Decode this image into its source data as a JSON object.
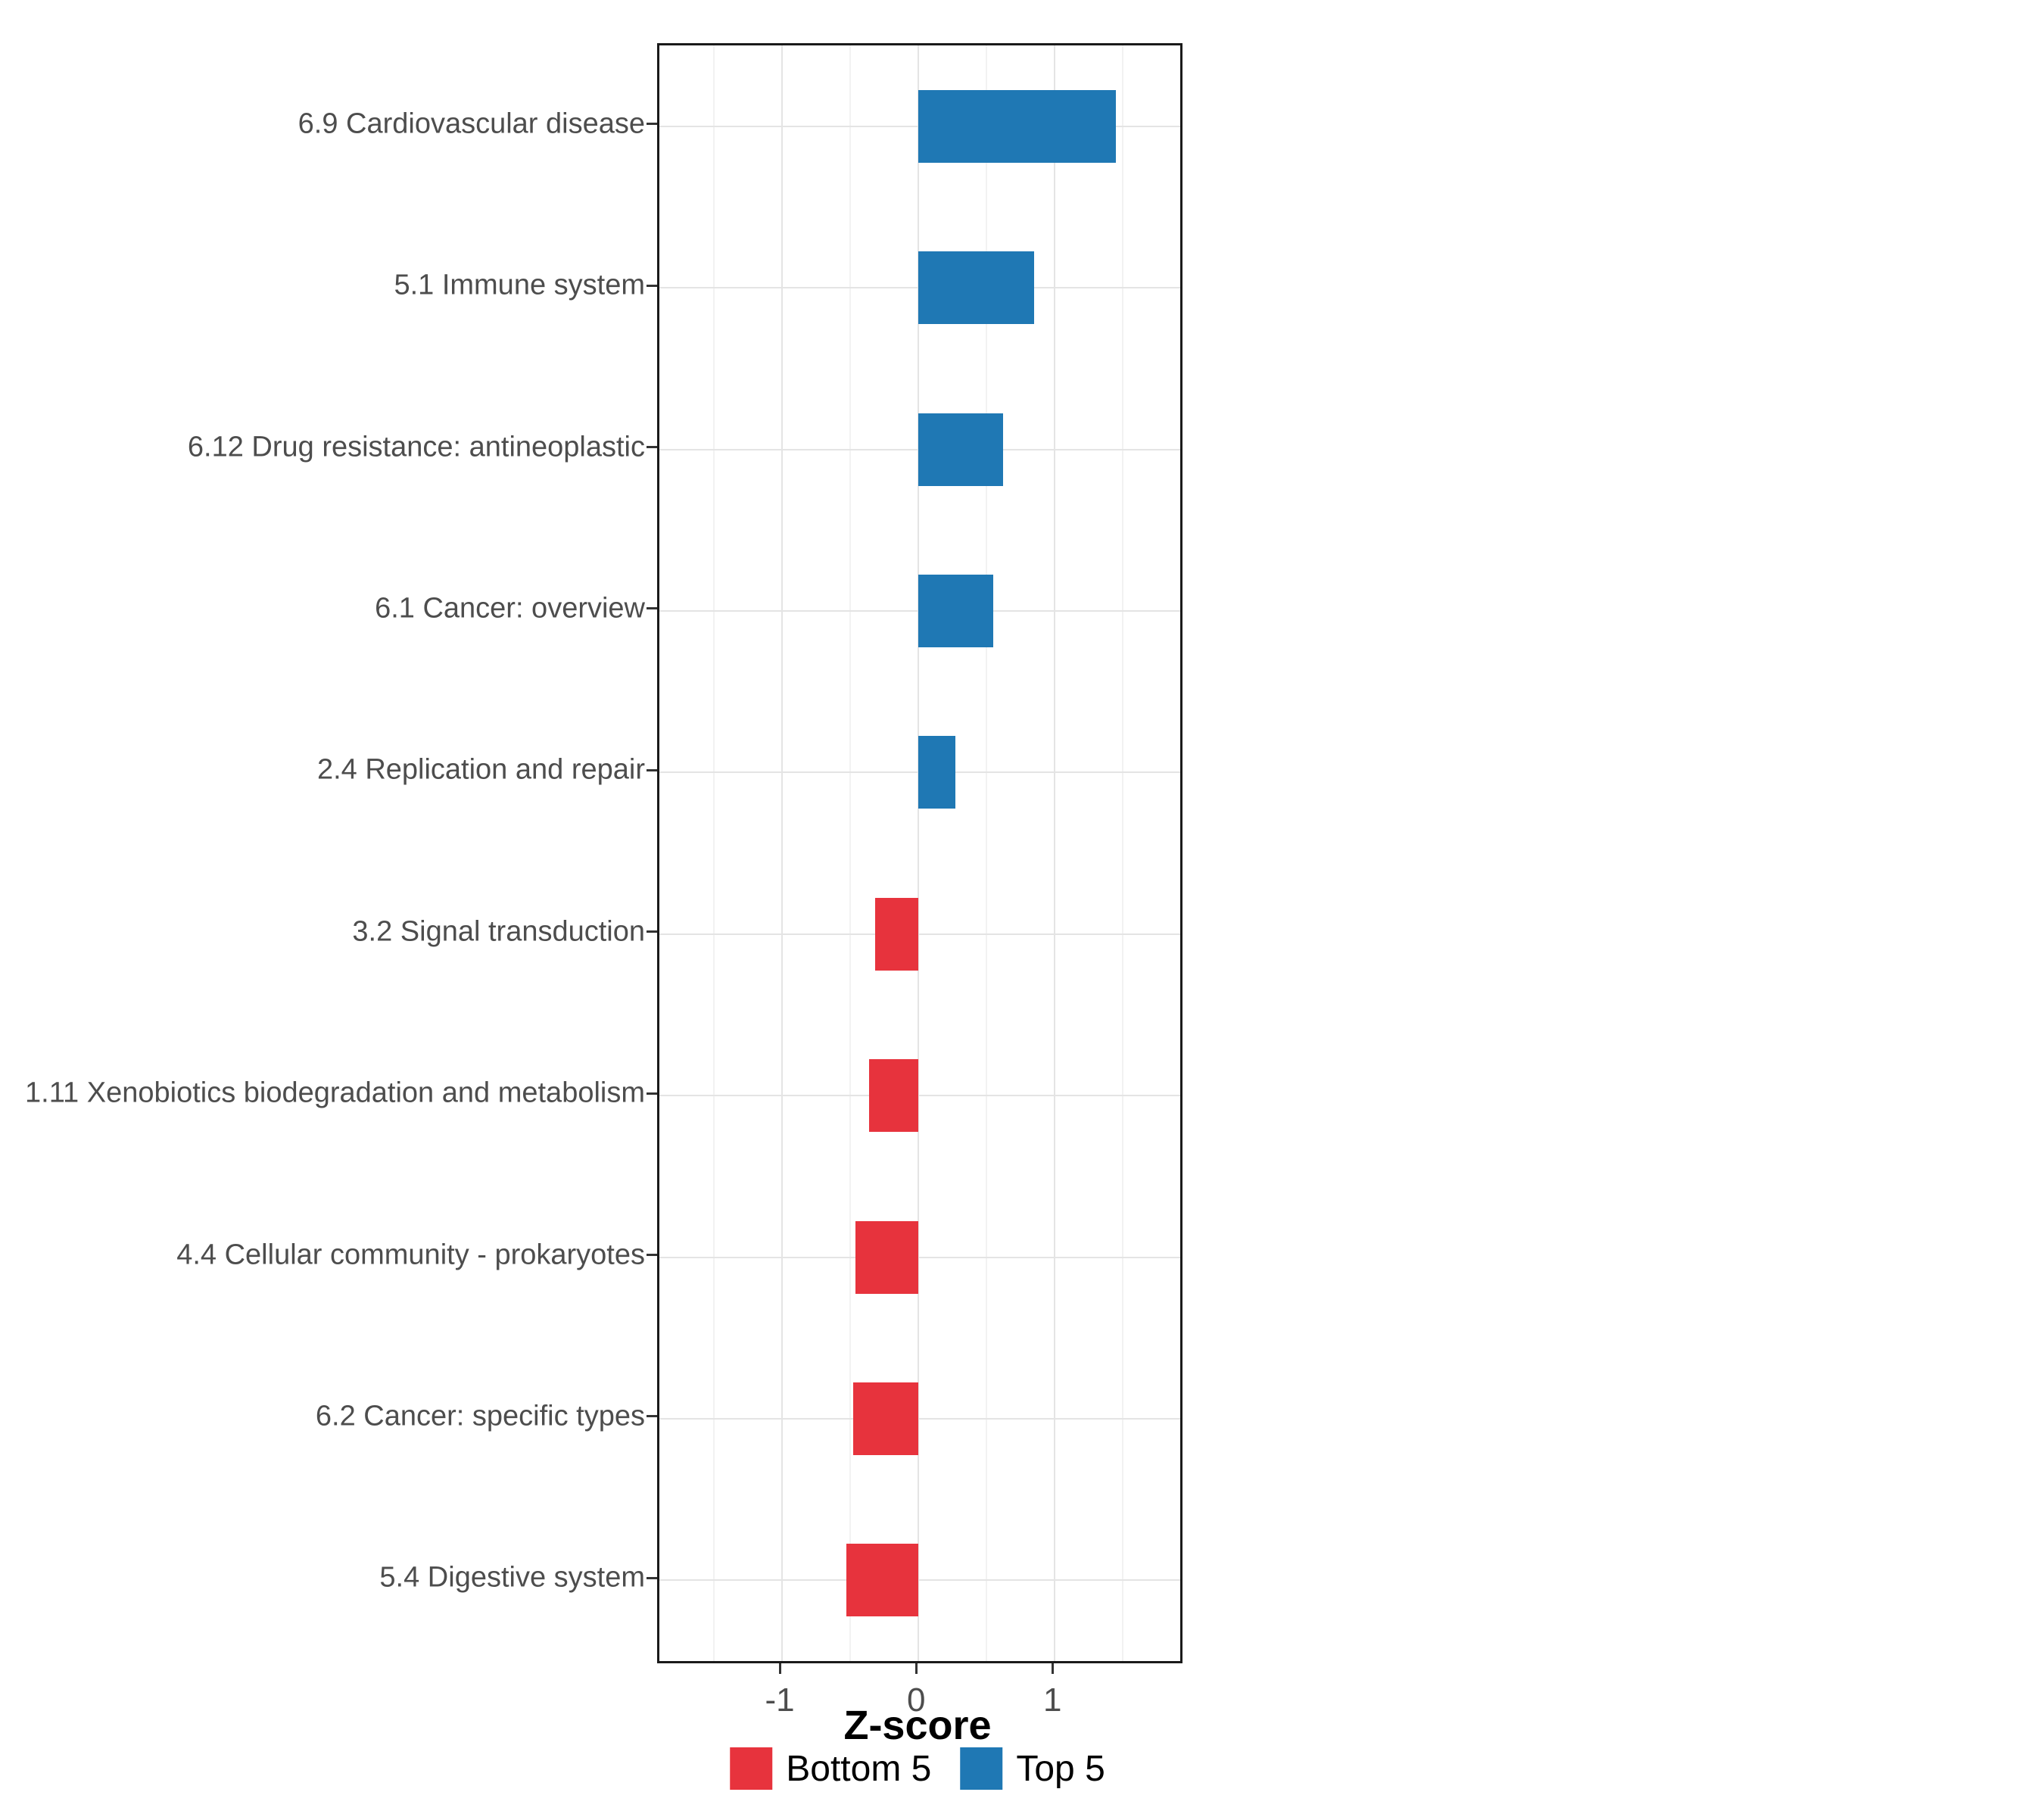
{
  "chart_data": {
    "type": "bar",
    "orientation": "horizontal",
    "title": "",
    "xlabel": "Z-score",
    "ylabel": "",
    "xlim": [
      -1.9,
      1.92
    ],
    "xticks": [
      {
        "value": -1,
        "label": "-1"
      },
      {
        "value": 0,
        "label": "0"
      },
      {
        "value": 1,
        "label": "1"
      }
    ],
    "xticks_minor": [
      -1.5,
      -0.5,
      0.5,
      1.5
    ],
    "grid": true,
    "items": [
      {
        "label": "6.9 Cardiovascular disease",
        "value": 1.45,
        "group": "Top 5"
      },
      {
        "label": "5.1 Immune system",
        "value": 0.85,
        "group": "Top 5"
      },
      {
        "label": "6.12 Drug resistance: antineoplastic",
        "value": 0.62,
        "group": "Top 5"
      },
      {
        "label": "6.1 Cancer: overview",
        "value": 0.55,
        "group": "Top 5"
      },
      {
        "label": "2.4 Replication and repair",
        "value": 0.27,
        "group": "Top 5"
      },
      {
        "label": "3.2 Signal transduction",
        "value": -0.32,
        "group": "Bottom 5"
      },
      {
        "label": "1.11 Xenobiotics biodegradation and metabolism",
        "value": -0.36,
        "group": "Bottom 5"
      },
      {
        "label": "4.4 Cellular community - prokaryotes",
        "value": -0.46,
        "group": "Bottom 5"
      },
      {
        "label": "6.2 Cancer: specific types",
        "value": -0.48,
        "group": "Bottom 5"
      },
      {
        "label": "5.4 Digestive system",
        "value": -0.53,
        "group": "Bottom 5"
      }
    ],
    "colors": {
      "Bottom 5": "#e7333d",
      "Top 5": "#1f78b4"
    },
    "legend_position": "bottom"
  },
  "legend": {
    "items": [
      {
        "label": "Bottom 5",
        "color": "#e7333d"
      },
      {
        "label": "Top 5",
        "color": "#1f78b4"
      }
    ]
  },
  "style": {
    "panel_border_color": "#1a1a1a",
    "grid_major_color": "#e4e4e4",
    "grid_minor_color": "#f2f2f2",
    "axis_text_color": "#4d4d4d"
  }
}
